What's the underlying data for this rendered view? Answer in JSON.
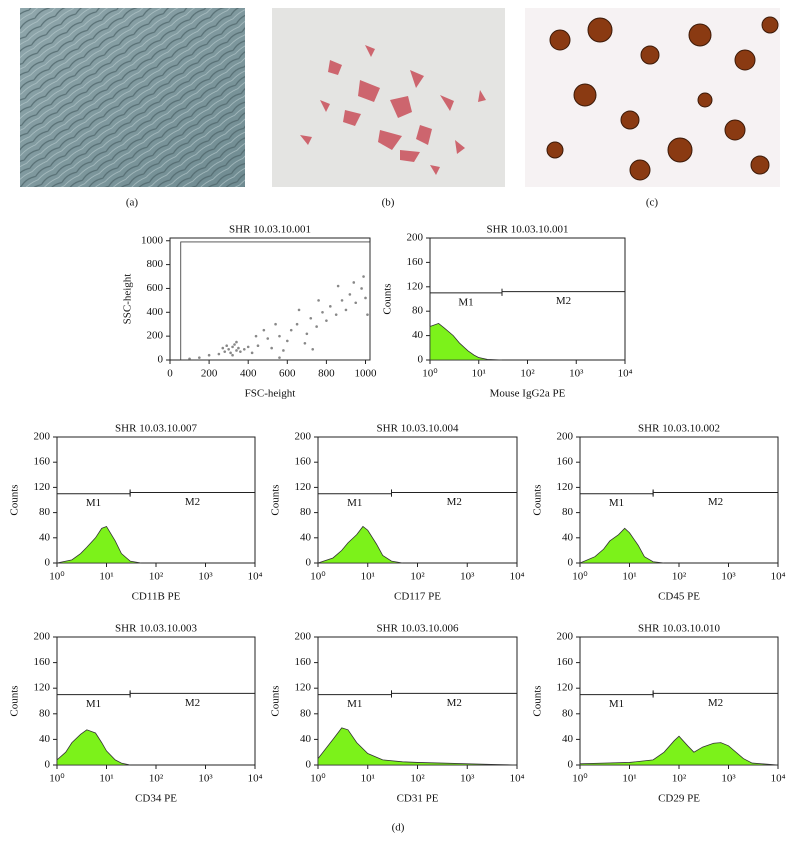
{
  "figure": {
    "panels": [
      "(a)",
      "(b)",
      "(c)"
    ],
    "label_d": "(d)"
  },
  "chart_data": [
    {
      "type": "scatter",
      "title": "SHR 10.03.10.001",
      "xlabel": "FSC-height",
      "ylabel": "SSC-height",
      "xlim": [
        0,
        1023
      ],
      "ylim": [
        0,
        1023
      ],
      "xticks": [
        0,
        200,
        400,
        600,
        800,
        1000
      ],
      "yticks": [
        0,
        200,
        400,
        600,
        800,
        1000
      ],
      "region": {
        "x": [
          55,
          1023
        ],
        "y": [
          0,
          990
        ]
      },
      "color": "#555555",
      "x": [
        300,
        320,
        340,
        280,
        350,
        310,
        330,
        290,
        360,
        270,
        380,
        320,
        250,
        400,
        340,
        450,
        500,
        520,
        560,
        600,
        620,
        650,
        700,
        720,
        750,
        780,
        800,
        820,
        850,
        880,
        900,
        920,
        950,
        980,
        1000,
        540,
        480,
        660,
        760,
        860,
        200,
        150,
        100,
        420,
        580,
        690,
        440,
        990,
        940,
        1010,
        560,
        730
      ],
      "y": [
        90,
        110,
        80,
        70,
        100,
        60,
        130,
        120,
        70,
        100,
        90,
        40,
        50,
        110,
        150,
        120,
        180,
        100,
        200,
        160,
        250,
        300,
        220,
        350,
        280,
        400,
        330,
        450,
        380,
        500,
        420,
        550,
        480,
        600,
        520,
        300,
        250,
        420,
        500,
        620,
        40,
        20,
        10,
        60,
        80,
        140,
        200,
        700,
        650,
        380,
        20,
        90
      ]
    },
    {
      "type": "area",
      "log_x": true,
      "title": "SHR 10.03.10.001",
      "xlabel": "Mouse IgG2a PE",
      "ylabel": "Counts",
      "color": "#7cf21a",
      "xlim": [
        1,
        10000
      ],
      "ylim": [
        0,
        200
      ],
      "xticks": [
        {
          "value": 1,
          "label": "10⁰"
        },
        {
          "value": 10,
          "label": "10¹"
        },
        {
          "value": 100,
          "label": "10²"
        },
        {
          "value": 1000,
          "label": "10³"
        },
        {
          "value": 10000,
          "label": "10⁴"
        }
      ],
      "yticks": [
        0,
        40,
        80,
        120,
        160,
        200
      ],
      "gates": [
        {
          "label": "M1",
          "range": [
            1,
            30
          ],
          "y": 110
        },
        {
          "label": "M2",
          "range": [
            30,
            10000
          ],
          "y": 112
        }
      ],
      "x": [
        1,
        1.5,
        2,
        3,
        4,
        6,
        8,
        10,
        15,
        20,
        30
      ],
      "values": [
        55,
        60,
        52,
        40,
        28,
        15,
        8,
        4,
        1,
        0.5,
        0
      ]
    },
    {
      "type": "area",
      "log_x": true,
      "title": "SHR 10.03.10.007",
      "xlabel": "CD11B PE",
      "ylabel": "Counts",
      "color": "#7cf21a",
      "xlim": [
        1,
        10000
      ],
      "ylim": [
        0,
        200
      ],
      "xticks": [
        {
          "value": 1,
          "label": "10⁰"
        },
        {
          "value": 10,
          "label": "10¹"
        },
        {
          "value": 100,
          "label": "10²"
        },
        {
          "value": 1000,
          "label": "10³"
        },
        {
          "value": 10000,
          "label": "10⁴"
        }
      ],
      "yticks": [
        0,
        40,
        80,
        120,
        160,
        200
      ],
      "gates": [
        {
          "label": "M1",
          "range": [
            1,
            30
          ],
          "y": 110
        },
        {
          "label": "M2",
          "range": [
            30,
            10000
          ],
          "y": 112
        }
      ],
      "x": [
        1,
        2,
        3,
        4,
        6,
        8,
        10,
        15,
        20,
        30,
        50
      ],
      "values": [
        0,
        5,
        15,
        25,
        40,
        55,
        58,
        35,
        15,
        3,
        0
      ]
    },
    {
      "type": "area",
      "log_x": true,
      "title": "SHR 10.03.10.004",
      "xlabel": "CD117 PE",
      "ylabel": "Counts",
      "color": "#7cf21a",
      "xlim": [
        1,
        10000
      ],
      "ylim": [
        0,
        200
      ],
      "xticks": [
        {
          "value": 1,
          "label": "10⁰"
        },
        {
          "value": 10,
          "label": "10¹"
        },
        {
          "value": 100,
          "label": "10²"
        },
        {
          "value": 1000,
          "label": "10³"
        },
        {
          "value": 10000,
          "label": "10⁴"
        }
      ],
      "yticks": [
        0,
        40,
        80,
        120,
        160,
        200
      ],
      "gates": [
        {
          "label": "M1",
          "range": [
            1,
            30
          ],
          "y": 110
        },
        {
          "label": "M2",
          "range": [
            30,
            10000
          ],
          "y": 112
        }
      ],
      "x": [
        1,
        2,
        3,
        4,
        6,
        8,
        10,
        15,
        20,
        30,
        50
      ],
      "values": [
        0,
        8,
        20,
        32,
        45,
        58,
        52,
        30,
        12,
        3,
        0
      ]
    },
    {
      "type": "area",
      "log_x": true,
      "title": "SHR 10.03.10.002",
      "xlabel": "CD45 PE",
      "ylabel": "Counts",
      "color": "#7cf21a",
      "xlim": [
        1,
        10000
      ],
      "ylim": [
        0,
        200
      ],
      "xticks": [
        {
          "value": 1,
          "label": "10⁰"
        },
        {
          "value": 10,
          "label": "10¹"
        },
        {
          "value": 100,
          "label": "10²"
        },
        {
          "value": 1000,
          "label": "10³"
        },
        {
          "value": 10000,
          "label": "10⁴"
        }
      ],
      "yticks": [
        0,
        40,
        80,
        120,
        160,
        200
      ],
      "gates": [
        {
          "label": "M1",
          "range": [
            1,
            30
          ],
          "y": 110
        },
        {
          "label": "M2",
          "range": [
            30,
            10000
          ],
          "y": 112
        }
      ],
      "x": [
        1,
        2,
        3,
        4,
        6,
        8,
        10,
        15,
        20,
        30,
        50
      ],
      "values": [
        0,
        10,
        22,
        35,
        45,
        55,
        48,
        28,
        10,
        2,
        0
      ]
    },
    {
      "type": "area",
      "log_x": true,
      "title": "SHR 10.03.10.003",
      "xlabel": "CD34 PE",
      "ylabel": "Counts",
      "color": "#7cf21a",
      "xlim": [
        1,
        10000
      ],
      "ylim": [
        0,
        200
      ],
      "xticks": [
        {
          "value": 1,
          "label": "10⁰"
        },
        {
          "value": 10,
          "label": "10¹"
        },
        {
          "value": 100,
          "label": "10²"
        },
        {
          "value": 1000,
          "label": "10³"
        },
        {
          "value": 10000,
          "label": "10⁴"
        }
      ],
      "yticks": [
        0,
        40,
        80,
        120,
        160,
        200
      ],
      "gates": [
        {
          "label": "M1",
          "range": [
            1,
            30
          ],
          "y": 110
        },
        {
          "label": "M2",
          "range": [
            30,
            10000
          ],
          "y": 112
        }
      ],
      "x": [
        1,
        1.5,
        2,
        3,
        4,
        6,
        8,
        10,
        15,
        20,
        30
      ],
      "values": [
        8,
        20,
        35,
        48,
        55,
        50,
        35,
        22,
        8,
        3,
        0
      ]
    },
    {
      "type": "area",
      "log_x": true,
      "title": "SHR 10.03.10.006",
      "xlabel": "CD31 PE",
      "ylabel": "Counts",
      "color": "#7cf21a",
      "xlim": [
        1,
        10000
      ],
      "ylim": [
        0,
        200
      ],
      "xticks": [
        {
          "value": 1,
          "label": "10⁰"
        },
        {
          "value": 10,
          "label": "10¹"
        },
        {
          "value": 100,
          "label": "10²"
        },
        {
          "value": 1000,
          "label": "10³"
        },
        {
          "value": 10000,
          "label": "10⁴"
        }
      ],
      "yticks": [
        0,
        40,
        80,
        120,
        160,
        200
      ],
      "gates": [
        {
          "label": "M1",
          "range": [
            1,
            30
          ],
          "y": 110
        },
        {
          "label": "M2",
          "range": [
            30,
            10000
          ],
          "y": 112
        }
      ],
      "x": [
        1,
        2,
        3,
        4,
        6,
        10,
        20,
        50,
        100,
        300,
        1000,
        3000,
        10000
      ],
      "values": [
        10,
        40,
        58,
        55,
        35,
        18,
        8,
        5,
        4,
        3,
        2,
        1,
        0
      ]
    },
    {
      "type": "area",
      "log_x": true,
      "title": "SHR 10.03.10.010",
      "xlabel": "CD29 PE",
      "ylabel": "Counts",
      "color": "#7cf21a",
      "xlim": [
        1,
        10000
      ],
      "ylim": [
        0,
        200
      ],
      "xticks": [
        {
          "value": 1,
          "label": "10⁰"
        },
        {
          "value": 10,
          "label": "10¹"
        },
        {
          "value": 100,
          "label": "10²"
        },
        {
          "value": 1000,
          "label": "10³"
        },
        {
          "value": 10000,
          "label": "10⁴"
        }
      ],
      "yticks": [
        0,
        40,
        80,
        120,
        160,
        200
      ],
      "gates": [
        {
          "label": "M1",
          "range": [
            1,
            30
          ],
          "y": 110
        },
        {
          "label": "M2",
          "range": [
            30,
            10000
          ],
          "y": 112
        }
      ],
      "x": [
        1,
        10,
        30,
        50,
        80,
        100,
        150,
        200,
        300,
        500,
        700,
        1000,
        2000,
        3000,
        10000
      ],
      "values": [
        2,
        4,
        8,
        20,
        38,
        45,
        30,
        20,
        28,
        34,
        35,
        30,
        10,
        3,
        0
      ]
    }
  ]
}
